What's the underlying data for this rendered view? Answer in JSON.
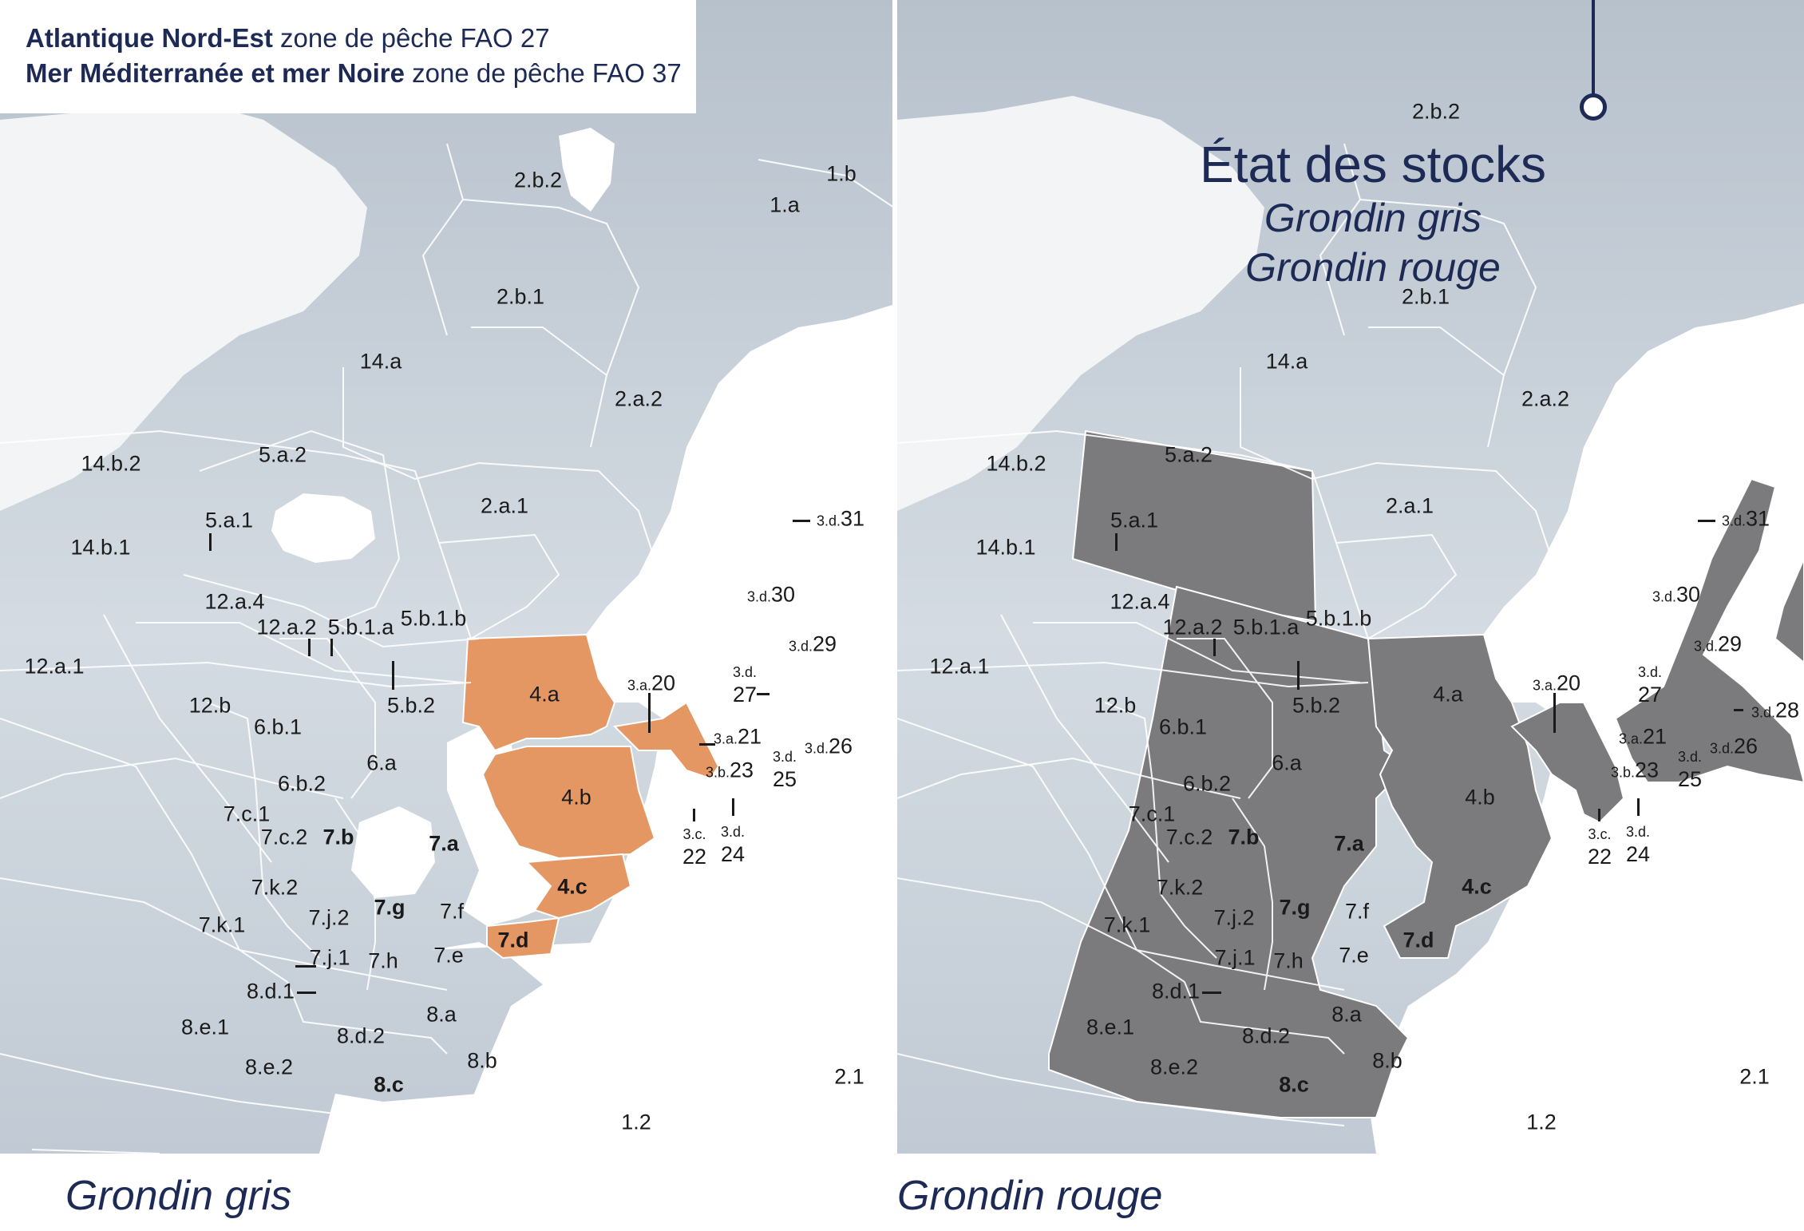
{
  "legend": {
    "line1_bold": "Atlantique Nord-Est",
    "line1_rest": " zone de pêche FAO 27",
    "line2_bold": "Mer Méditerranée et mer Noire",
    "line2_rest": " zone de pêche FAO 37"
  },
  "title": {
    "main": "État des stocks",
    "sub1": "Grondin gris",
    "sub2": "Grondin rouge"
  },
  "captions": {
    "left": "Grondin gris",
    "right": "Grondin rouge"
  },
  "colors": {
    "sea": "#c4ccd6",
    "land": "#ffffff",
    "boundary": "#ffffff",
    "highlight_gris": "#e59763",
    "highlight_rouge": "#7b7b7d",
    "title": "#1d2a55"
  },
  "left_map": {
    "highlight_species": "Grondin gris",
    "highlighted_areas": [
      "4.a",
      "4.b",
      "4.c",
      "7.d",
      "3.a.20",
      "3.a.21"
    ],
    "labels": {
      "a_1a": "1.a",
      "a_1b": "1.b",
      "a_2b2": "2.b.2",
      "a_2b1": "2.b.1",
      "a_2a2": "2.a.2",
      "a_2a1": "2.a.1",
      "a_14a": "14.a",
      "a_14b2": "14.b.2",
      "a_14b1": "14.b.1",
      "a_5a2": "5.a.2",
      "a_5a1": "5.a.1",
      "a_12a4": "12.a.4",
      "a_12a2": "12.a.2",
      "a_5b1a": "5.b.1.a",
      "a_5b1b": "5.b.1.b",
      "a_12a1": "12.a.1",
      "a_12b": "12.b",
      "a_6b1": "6.b.1",
      "a_5b2": "5.b.2",
      "a_6a": "6.a",
      "a_6b2": "6.b.2",
      "a_4a": "4.a",
      "a_4b": "4.b",
      "a_4c": "4.c",
      "a_7c1": "7.c.1",
      "a_7c2": "7.c.2",
      "a_7b": "7.b",
      "a_7a": "7.a",
      "a_7k2": "7.k.2",
      "a_7g": "7.g",
      "a_7f": "7.f",
      "a_7k1": "7.k.1",
      "a_7j2": "7.j.2",
      "a_7j1": "7.j.1",
      "a_7h": "7.h",
      "a_7e": "7.e",
      "a_7d": "7.d",
      "a_8d1": "8.d.1",
      "a_8a": "8.a",
      "a_8e1": "8.e.1",
      "a_8d2": "8.d.2",
      "a_8b": "8.b",
      "a_8e2": "8.e.2",
      "a_8c": "8.c",
      "a_21": "2.1",
      "a_12": "1.2",
      "a_3d": "3.d.",
      "a_3a": "3.a.",
      "a_3b": "3.b.",
      "a_3c": "3.c.",
      "n_31": "31",
      "n_30": "30",
      "n_29": "29",
      "n_27": "27",
      "n_20": "20",
      "n_21": "21",
      "n_26": "26",
      "n_25": "25",
      "n_23": "23",
      "n_22": "22",
      "n_24": "24"
    }
  },
  "right_map": {
    "highlight_species": "Grondin rouge",
    "labels": {
      "a_2b2": "2.b.2",
      "a_2b1": "2.b.1",
      "a_2a2": "2.a.2",
      "a_2a1": "2.a.1",
      "a_14a": "14.a",
      "a_14b2": "14.b.2",
      "a_14b1": "14.b.1",
      "a_5a2": "5.a.2",
      "a_5a1": "5.a.1",
      "a_12a4": "12.a.4",
      "a_12a2": "12.a.2",
      "a_5b1a": "5.b.1.a",
      "a_5b1b": "5.b.1.b",
      "a_12a1": "12.a.1",
      "a_12b": "12.b",
      "a_6b1": "6.b.1",
      "a_5b2": "5.b.2",
      "a_6a": "6.a",
      "a_6b2": "6.b.2",
      "a_4a": "4.a",
      "a_4b": "4.b",
      "a_4c": "4.c",
      "a_7c1": "7.c.1",
      "a_7c2": "7.c.2",
      "a_7b": "7.b",
      "a_7a": "7.a",
      "a_7k2": "7.k.2",
      "a_7g": "7.g",
      "a_7f": "7.f",
      "a_7k1": "7.k.1",
      "a_7j2": "7.j.2",
      "a_7j1": "7.j.1",
      "a_7h": "7.h",
      "a_7e": "7.e",
      "a_7d": "7.d",
      "a_8d1": "8.d.1",
      "a_8a": "8.a",
      "a_8e1": "8.e.1",
      "a_8d2": "8.d.2",
      "a_8b": "8.b",
      "a_8e2": "8.e.2",
      "a_8c": "8.c",
      "a_21": "2.1",
      "a_12": "1.2",
      "a_3d": "3.d.",
      "a_3a": "3.a.",
      "a_3b": "3.b.",
      "a_3c": "3.c.",
      "n_31": "31",
      "n_30": "30",
      "n_29": "29",
      "n_28": "28",
      "n_27": "27",
      "n_20": "20",
      "n_21": "21",
      "n_26": "26",
      "n_25": "25",
      "n_23": "23",
      "n_22": "22",
      "n_24": "24"
    }
  }
}
